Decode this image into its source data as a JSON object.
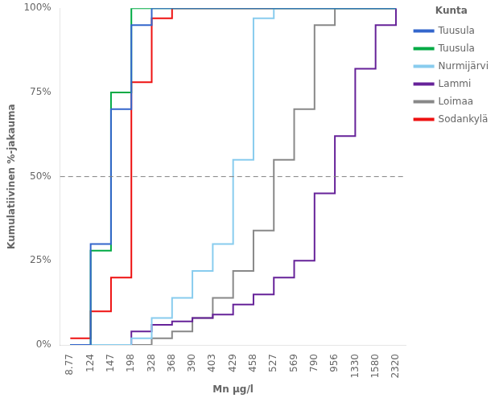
{
  "chart_data": {
    "type": "step",
    "xlabel": "Mn µg/l",
    "ylabel": "Kumulatiivinen %-jakauma",
    "legend_title": "Kunta",
    "legend": "right",
    "grid": false,
    "categories": [
      "8.77",
      "124",
      "147",
      "198",
      "328",
      "368",
      "390",
      "403",
      "429",
      "458",
      "527",
      "569",
      "790",
      "956",
      "1330",
      "1580",
      "2320"
    ],
    "ylim": [
      0,
      100
    ],
    "yticks": [
      {
        "value": 0,
        "label": "0%"
      },
      {
        "value": 25,
        "label": "25%"
      },
      {
        "value": 50,
        "label": "50%"
      },
      {
        "value": 75,
        "label": "75%"
      },
      {
        "value": 100,
        "label": "100%"
      }
    ],
    "annotations": [
      {
        "type": "hline",
        "y": 50,
        "color": "gray",
        "line_style": "dashed"
      }
    ],
    "series": [
      {
        "name": "Tuusula",
        "color": "#3366CC",
        "values": [
          0,
          30,
          70,
          95,
          100,
          100,
          100,
          100,
          100,
          100,
          100,
          100,
          100,
          100,
          100,
          100,
          100
        ]
      },
      {
        "name": "Tuusula",
        "color": "#00AA44",
        "values": [
          0,
          28,
          75,
          100,
          100,
          100,
          100,
          100,
          100,
          100,
          100,
          100,
          100,
          100,
          100,
          100,
          100
        ]
      },
      {
        "name": "Nurmijärvi",
        "color": "#88CCEE",
        "values": [
          0,
          0,
          0,
          2,
          8,
          14,
          22,
          30,
          55,
          97,
          100,
          100,
          100,
          100,
          100,
          100,
          100
        ]
      },
      {
        "name": "Lammi",
        "color": "#662299",
        "values": [
          0,
          0,
          0,
          4,
          6,
          7,
          8,
          9,
          12,
          15,
          20,
          25,
          45,
          62,
          82,
          95,
          100
        ]
      },
      {
        "name": "Loimaa",
        "color": "#888888",
        "values": [
          0,
          0,
          0,
          0,
          2,
          4,
          8,
          14,
          22,
          34,
          55,
          70,
          95,
          100,
          100,
          100,
          100
        ]
      },
      {
        "name": "Sodankylä",
        "color": "#EE1111",
        "values": [
          2,
          10,
          20,
          78,
          97,
          100,
          100,
          100,
          100,
          100,
          100,
          100,
          100,
          100,
          100,
          100,
          100
        ]
      }
    ]
  }
}
